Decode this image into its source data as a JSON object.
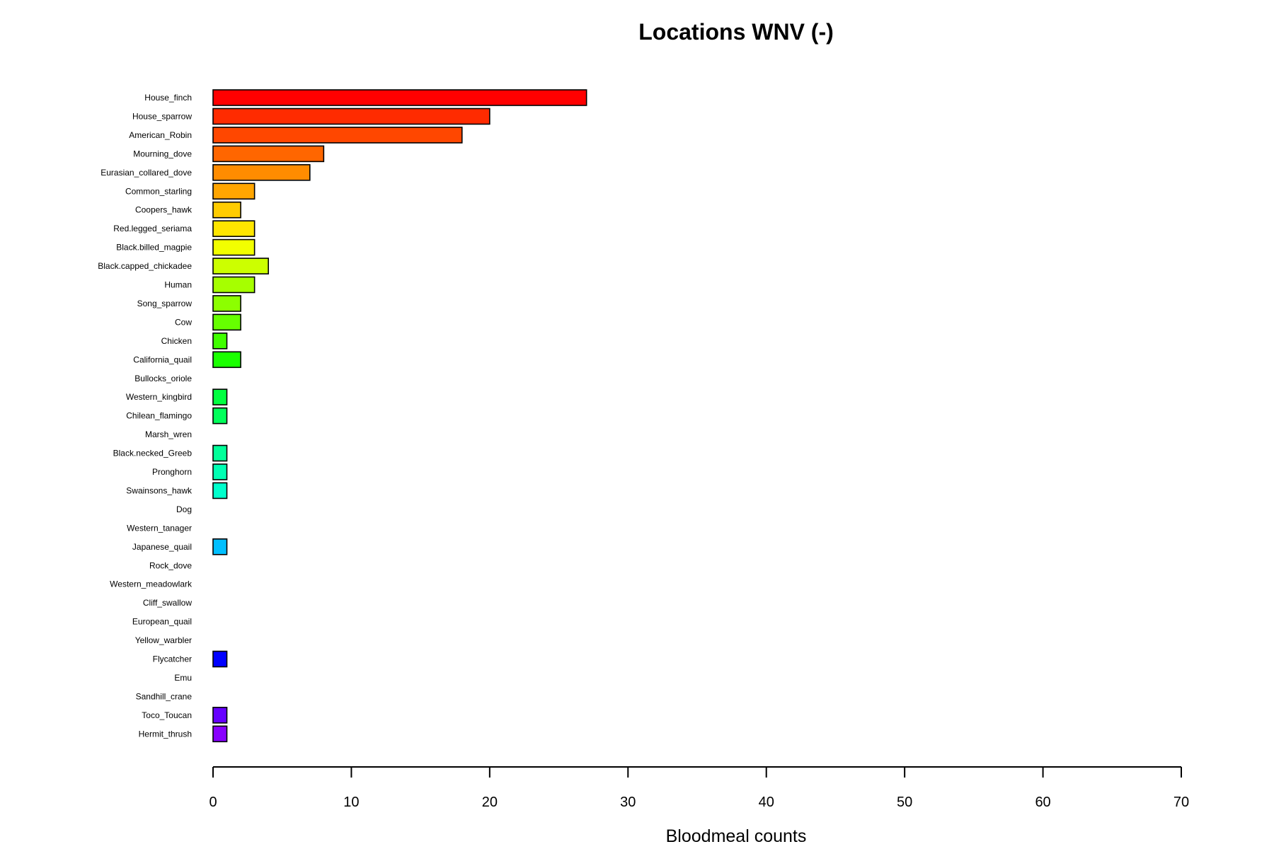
{
  "chart_data": {
    "type": "bar",
    "orientation": "horizontal",
    "title": "Locations WNV (-)",
    "xlabel": "Bloodmeal counts",
    "ylabel": "",
    "xlim": [
      0,
      70
    ],
    "xticks": [
      0,
      10,
      20,
      30,
      40,
      50,
      60,
      70
    ],
    "grid": false,
    "categories": [
      "House_finch",
      "House_sparrow",
      "American_Robin",
      "Mourning_dove",
      "Eurasian_collared_dove",
      "Common_starling",
      "Coopers_hawk",
      "Red.legged_seriama",
      "Black.billed_magpie",
      "Black.capped_chickadee",
      "Human",
      "Song_sparrow",
      "Cow",
      "Chicken",
      "California_quail",
      "Bullocks_oriole",
      "Western_kingbird",
      "Chilean_flamingo",
      "Marsh_wren",
      "Black.necked_Greeb",
      "Pronghorn",
      "Swainsons_hawk",
      "Dog",
      "Western_tanager",
      "Japanese_quail",
      "Rock_dove",
      "Western_meadowlark",
      "Cliff_swallow",
      "European_quail",
      "Yellow_warbler",
      "Flycatcher",
      "Emu",
      "Sandhill_crane",
      "Toco_Toucan",
      "Hermit_thrush"
    ],
    "values": [
      27,
      20,
      18,
      8,
      7,
      3,
      2,
      3,
      3,
      4,
      3,
      2,
      2,
      1,
      2,
      0,
      1,
      1,
      0,
      1,
      1,
      1,
      0,
      0,
      1,
      0,
      0,
      0,
      0,
      0,
      1,
      0,
      0,
      1,
      1
    ],
    "colors": [
      "#FF0000",
      "#FF2B00",
      "#FF4700",
      "#FF6600",
      "#FF8C00",
      "#FFA500",
      "#FFCC00",
      "#FFE600",
      "#F2FF00",
      "#CCFF00",
      "#A6FF00",
      "#8CFF00",
      "#66FF00",
      "#40FF00",
      "#1AFF00",
      "#00FF1A",
      "#00FF40",
      "#00FF5A",
      "#00FF80",
      "#00FF99",
      "#00FFB3",
      "#00FFCC",
      "#00FFE6",
      "#00E6FF",
      "#00BFFF",
      "#0099FF",
      "#0073FF",
      "#004DFF",
      "#0026FF",
      "#0010FF",
      "#0000FF",
      "#2200FF",
      "#4400FF",
      "#6600FF",
      "#8800FF"
    ]
  }
}
